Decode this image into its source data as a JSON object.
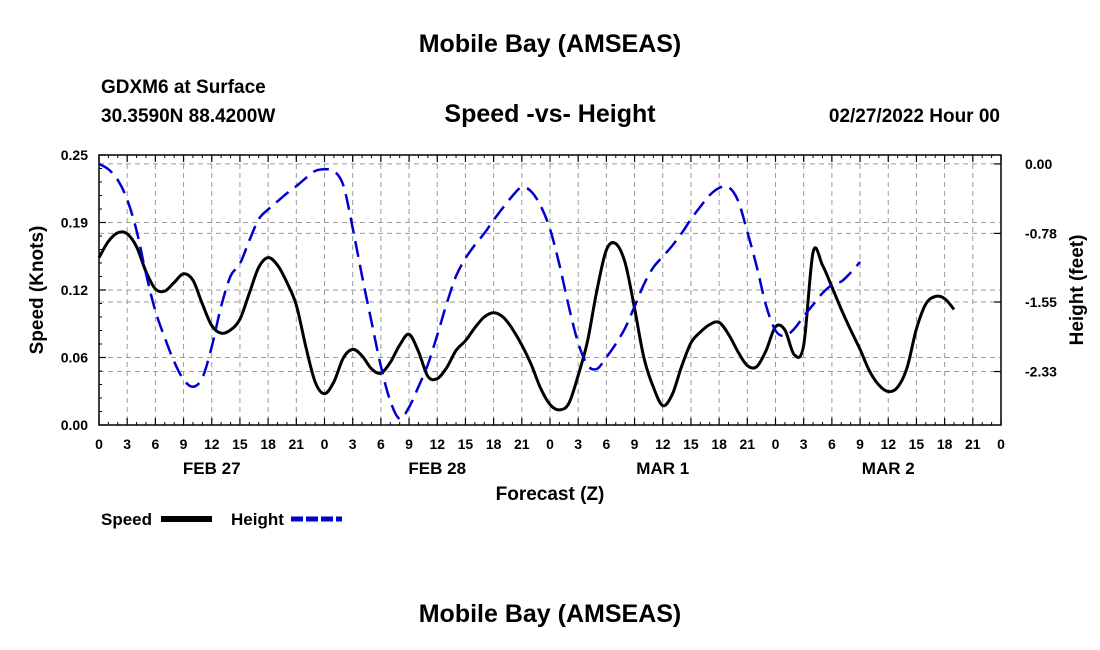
{
  "header": {
    "title": "Mobile Bay (AMSEAS)",
    "station": "GDXM6 at Surface",
    "coords": "30.3590N  88.4200W",
    "subtitle": "Speed -vs- Height",
    "timestamp": "02/27/2022 Hour 00"
  },
  "footer": {
    "title": "Mobile Bay (AMSEAS)"
  },
  "chart_data": {
    "type": "line",
    "title": "Speed -vs- Height",
    "xlabel": "Forecast (Z)",
    "ylabel": "Speed (Knots)",
    "y2label": "Height (feet)",
    "xlim": [
      0,
      96
    ],
    "ylim": [
      0,
      0.25
    ],
    "y2lim": [
      0.1,
      -2.93
    ],
    "grid": true,
    "legend_position": "bottom-left",
    "x_tick_labels": [
      "0",
      "3",
      "6",
      "9",
      "12",
      "15",
      "18",
      "21",
      "0",
      "3",
      "6",
      "9",
      "12",
      "15",
      "18",
      "21",
      "0",
      "3",
      "6",
      "9",
      "12",
      "15",
      "18",
      "21",
      "0",
      "3",
      "6",
      "9",
      "12",
      "15",
      "18",
      "21",
      "0"
    ],
    "day_labels": [
      {
        "x": 12,
        "label": "FEB 27"
      },
      {
        "x": 36,
        "label": "FEB 28"
      },
      {
        "x": 60,
        "label": "MAR 1"
      },
      {
        "x": 84,
        "label": "MAR 2"
      }
    ],
    "y_tick_labels": [
      "0.00",
      "0.06",
      "0.12",
      "0.19",
      "0.25"
    ],
    "y_ticks": [
      0,
      0.0625,
      0.125,
      0.1875,
      0.25
    ],
    "y2_tick_labels": [
      "0.00",
      "-0.78",
      "-1.55",
      "-2.33"
    ],
    "y2_ticks": [
      0,
      -0.78,
      -1.55,
      -2.33
    ],
    "series": [
      {
        "name": "Speed",
        "color": "#000000",
        "dash": "solid",
        "axis": "left",
        "points": [
          [
            0,
            0.155
          ],
          [
            1,
            0.17
          ],
          [
            2,
            0.178
          ],
          [
            3,
            0.177
          ],
          [
            4,
            0.165
          ],
          [
            5,
            0.142
          ],
          [
            6,
            0.126
          ],
          [
            7,
            0.124
          ],
          [
            8,
            0.132
          ],
          [
            9,
            0.14
          ],
          [
            10,
            0.134
          ],
          [
            11,
            0.112
          ],
          [
            12,
            0.092
          ],
          [
            13,
            0.085
          ],
          [
            14,
            0.088
          ],
          [
            15,
            0.098
          ],
          [
            16,
            0.122
          ],
          [
            17,
            0.146
          ],
          [
            18,
            0.155
          ],
          [
            19,
            0.148
          ],
          [
            20,
            0.132
          ],
          [
            21,
            0.111
          ],
          [
            22,
            0.073
          ],
          [
            23,
            0.04
          ],
          [
            24,
            0.029
          ],
          [
            25,
            0.04
          ],
          [
            26,
            0.062
          ],
          [
            27,
            0.07
          ],
          [
            28,
            0.064
          ],
          [
            29,
            0.052
          ],
          [
            30,
            0.048
          ],
          [
            31,
            0.058
          ],
          [
            32,
            0.074
          ],
          [
            33,
            0.084
          ],
          [
            34,
            0.068
          ],
          [
            35,
            0.045
          ],
          [
            36,
            0.043
          ],
          [
            37,
            0.053
          ],
          [
            38,
            0.069
          ],
          [
            39,
            0.078
          ],
          [
            40,
            0.09
          ],
          [
            41,
            0.1
          ],
          [
            42,
            0.104
          ],
          [
            43,
            0.1
          ],
          [
            44,
            0.089
          ],
          [
            45,
            0.074
          ],
          [
            46,
            0.056
          ],
          [
            47,
            0.034
          ],
          [
            48,
            0.019
          ],
          [
            49,
            0.014
          ],
          [
            50,
            0.02
          ],
          [
            51,
            0.046
          ],
          [
            52,
            0.078
          ],
          [
            53,
            0.125
          ],
          [
            54,
            0.162
          ],
          [
            55,
            0.168
          ],
          [
            56,
            0.15
          ],
          [
            57,
            0.108
          ],
          [
            58,
            0.062
          ],
          [
            59,
            0.035
          ],
          [
            60,
            0.018
          ],
          [
            61,
            0.028
          ],
          [
            62,
            0.054
          ],
          [
            63,
            0.076
          ],
          [
            64,
            0.086
          ],
          [
            65,
            0.093
          ],
          [
            66,
            0.095
          ],
          [
            67,
            0.084
          ],
          [
            68,
            0.068
          ],
          [
            69,
            0.055
          ],
          [
            70,
            0.054
          ],
          [
            71,
            0.069
          ],
          [
            72,
            0.091
          ],
          [
            73,
            0.088
          ],
          [
            74,
            0.065
          ],
          [
            75,
            0.074
          ],
          [
            76,
            0.16
          ],
          [
            77,
            0.148
          ],
          [
            78,
            0.128
          ],
          [
            79,
            0.107
          ],
          [
            80,
            0.088
          ],
          [
            81,
            0.07
          ],
          [
            82,
            0.05
          ],
          [
            83,
            0.037
          ],
          [
            84,
            0.031
          ],
          [
            85,
            0.035
          ],
          [
            86,
            0.053
          ],
          [
            87,
            0.089
          ],
          [
            88,
            0.112
          ],
          [
            89,
            0.119
          ],
          [
            90,
            0.117
          ],
          [
            91,
            0.107
          ]
        ]
      },
      {
        "name": "Height",
        "color": "#0000cc",
        "dash": "dashed",
        "axis": "right",
        "points": [
          [
            0,
            0.0
          ],
          [
            1,
            -0.06
          ],
          [
            2,
            -0.18
          ],
          [
            3,
            -0.4
          ],
          [
            4,
            -0.75
          ],
          [
            5,
            -1.23
          ],
          [
            6,
            -1.65
          ],
          [
            7,
            -1.95
          ],
          [
            8,
            -2.22
          ],
          [
            9,
            -2.42
          ],
          [
            10,
            -2.5
          ],
          [
            11,
            -2.4
          ],
          [
            12,
            -2.05
          ],
          [
            13,
            -1.6
          ],
          [
            14,
            -1.26
          ],
          [
            15,
            -1.12
          ],
          [
            16,
            -0.86
          ],
          [
            17,
            -0.62
          ],
          [
            18,
            -0.51
          ],
          [
            19,
            -0.42
          ],
          [
            20,
            -0.33
          ],
          [
            21,
            -0.25
          ],
          [
            22,
            -0.16
          ],
          [
            23,
            -0.08
          ],
          [
            24,
            -0.06
          ],
          [
            25,
            -0.08
          ],
          [
            26,
            -0.24
          ],
          [
            27,
            -0.72
          ],
          [
            28,
            -1.26
          ],
          [
            29,
            -1.77
          ],
          [
            30,
            -2.27
          ],
          [
            31,
            -2.66
          ],
          [
            32,
            -2.86
          ],
          [
            33,
            -2.73
          ],
          [
            34,
            -2.5
          ],
          [
            35,
            -2.25
          ],
          [
            36,
            -1.92
          ],
          [
            37,
            -1.57
          ],
          [
            38,
            -1.26
          ],
          [
            39,
            -1.06
          ],
          [
            40,
            -0.91
          ],
          [
            41,
            -0.78
          ],
          [
            42,
            -0.63
          ],
          [
            43,
            -0.49
          ],
          [
            44,
            -0.36
          ],
          [
            45,
            -0.26
          ],
          [
            46,
            -0.31
          ],
          [
            47,
            -0.47
          ],
          [
            48,
            -0.73
          ],
          [
            49,
            -1.13
          ],
          [
            50,
            -1.6
          ],
          [
            51,
            -2.01
          ],
          [
            52,
            -2.26
          ],
          [
            53,
            -2.3
          ],
          [
            54,
            -2.17
          ],
          [
            55,
            -2.02
          ],
          [
            56,
            -1.84
          ],
          [
            57,
            -1.6
          ],
          [
            58,
            -1.35
          ],
          [
            59,
            -1.16
          ],
          [
            60,
            -1.04
          ],
          [
            61,
            -0.92
          ],
          [
            62,
            -0.78
          ],
          [
            63,
            -0.62
          ],
          [
            64,
            -0.48
          ],
          [
            65,
            -0.35
          ],
          [
            66,
            -0.27
          ],
          [
            67,
            -0.26
          ],
          [
            68,
            -0.41
          ],
          [
            69,
            -0.76
          ],
          [
            70,
            -1.15
          ],
          [
            71,
            -1.59
          ],
          [
            72,
            -1.87
          ],
          [
            73,
            -1.93
          ],
          [
            74,
            -1.85
          ],
          [
            75,
            -1.71
          ],
          [
            76,
            -1.58
          ],
          [
            77,
            -1.45
          ],
          [
            78,
            -1.36
          ],
          [
            79,
            -1.32
          ],
          [
            80,
            -1.22
          ],
          [
            81,
            -1.1
          ]
        ]
      }
    ]
  },
  "legend": {
    "items": [
      {
        "label": "Speed",
        "color": "#000000",
        "dash": "solid"
      },
      {
        "label": "Height",
        "color": "#0000cc",
        "dash": "dashed"
      }
    ]
  }
}
